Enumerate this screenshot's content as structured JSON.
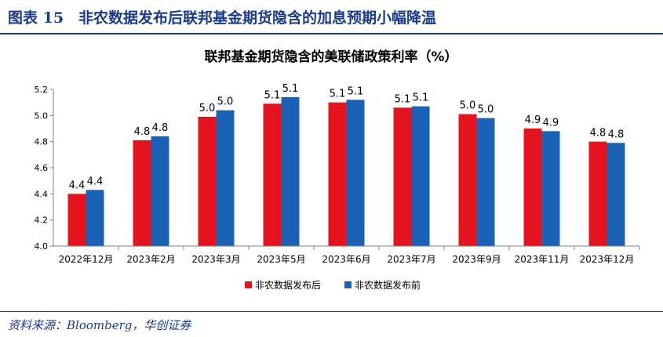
{
  "figure_label": "图表 15　非农数据发布后联邦基金期货隐含的加息预期小幅降温",
  "source": "资料来源：Bloomberg，华创证券",
  "colors": {
    "after": "#e3141d",
    "before": "#1b62b5",
    "header": "#1a3c86",
    "axis": "#808080"
  },
  "chart_data": {
    "type": "bar",
    "title": "联邦基金期货隐含的美联储政策利率（%）",
    "xlabel": "",
    "ylabel": "",
    "ylim": [
      4.0,
      5.2
    ],
    "yticks": [
      "4.0",
      "4.2",
      "4.4",
      "4.6",
      "4.8",
      "5.0",
      "5.2"
    ],
    "grid": false,
    "legend_position": "bottom",
    "categories": [
      "2022年12月",
      "2023年2月",
      "2023年3月",
      "2023年5月",
      "2023年6月",
      "2023年7月",
      "2023年9月",
      "2023年11月",
      "2023年12月"
    ],
    "series": [
      {
        "name": "非农数据发布后",
        "color": "#e3141d",
        "values": [
          4.4,
          4.81,
          4.99,
          5.09,
          5.1,
          5.06,
          5.01,
          4.9,
          4.8
        ],
        "labels": [
          "4.4",
          "4.8",
          "5.0",
          "5.1",
          "5.1",
          "5.1",
          "5.0",
          "4.9",
          "4.8"
        ]
      },
      {
        "name": "非农数据发布前",
        "color": "#1b62b5",
        "values": [
          4.43,
          4.84,
          5.04,
          5.14,
          5.12,
          5.07,
          4.98,
          4.88,
          4.79
        ],
        "labels": [
          "4.4",
          "4.8",
          "5.0",
          "5.1",
          "5.1",
          "5.1",
          "5.0",
          "4.9",
          "4.8"
        ]
      }
    ]
  }
}
